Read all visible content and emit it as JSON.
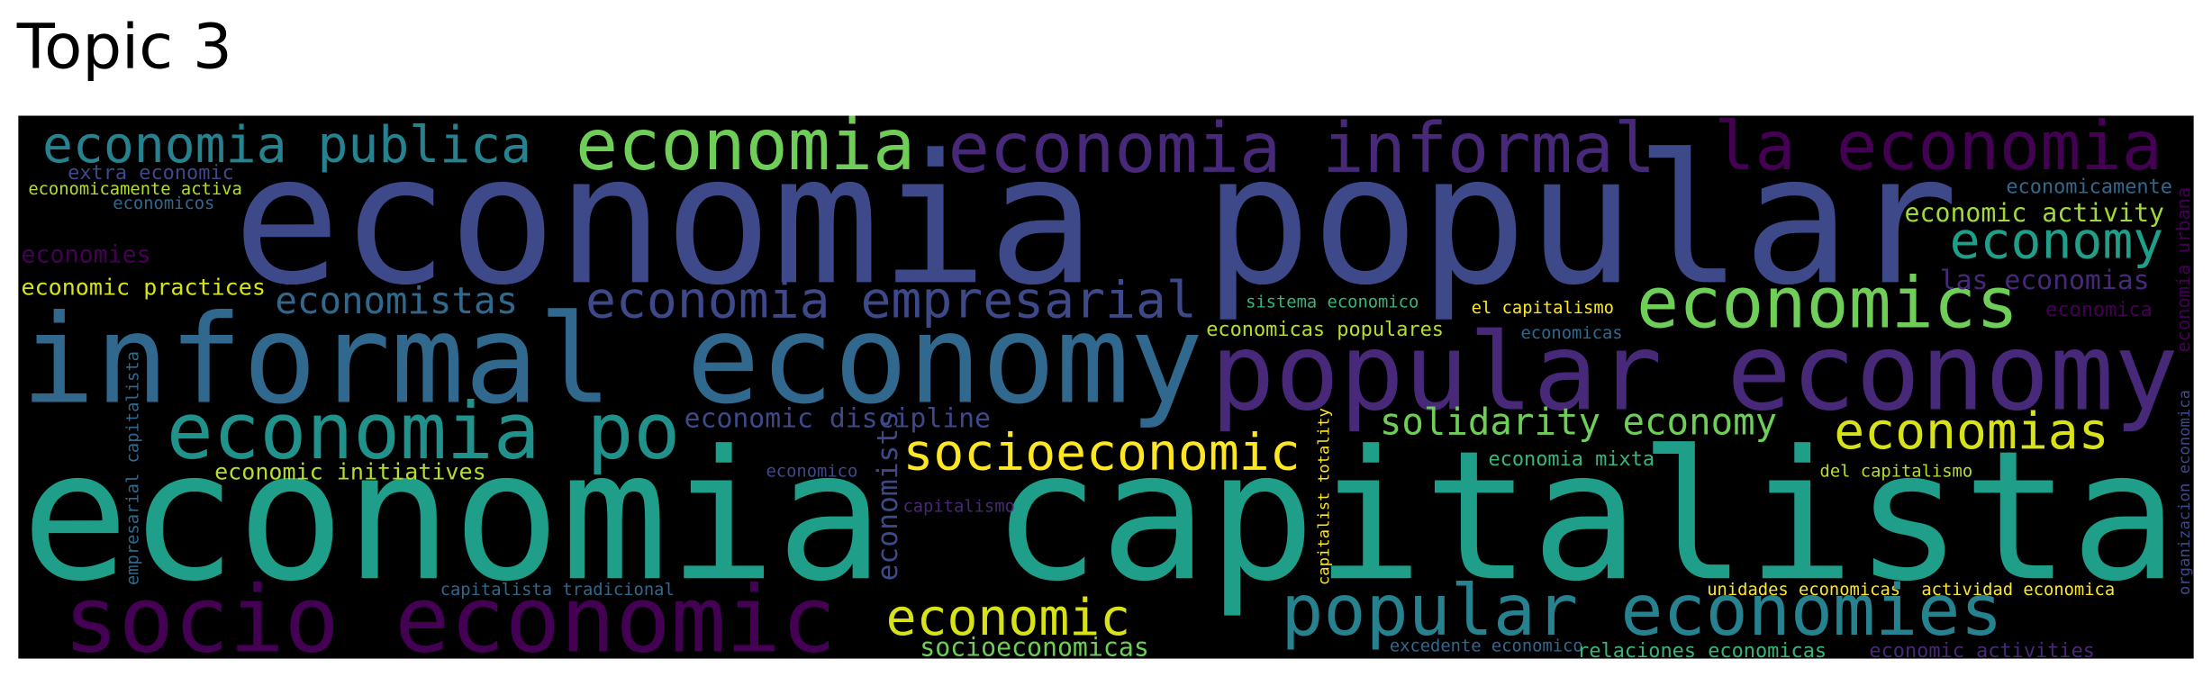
{
  "title": "Topic 3",
  "words": [
    {
      "text": "economia popular",
      "color": "#3e4989"
    },
    {
      "text": "informal economy",
      "color": "#31688e"
    },
    {
      "text": "economia capitalista",
      "color": "#1f9e89"
    },
    {
      "text": "popular economy",
      "color": "#482878"
    },
    {
      "text": "socio economic",
      "color": "#440154"
    },
    {
      "text": "economia po",
      "color": "#21918c"
    },
    {
      "text": "economia publica",
      "color": "#26828e"
    },
    {
      "text": "economia",
      "color": "#6ece58"
    },
    {
      "text": "economia informal",
      "color": "#482878"
    },
    {
      "text": "la economia",
      "color": "#440154"
    },
    {
      "text": "economia empresarial",
      "color": "#3e4989"
    },
    {
      "text": "economistas",
      "color": "#31688e"
    },
    {
      "text": "economics",
      "color": "#6ece58"
    },
    {
      "text": "economy",
      "color": "#1f9e89"
    },
    {
      "text": "economic activity",
      "color": "#a0da39"
    },
    {
      "text": "economicamente",
      "color": "#31688e"
    },
    {
      "text": "las economias",
      "color": "#482878"
    },
    {
      "text": "economica",
      "color": "#440154"
    },
    {
      "text": "economia urbana",
      "color": "#440154"
    },
    {
      "text": "extra economic",
      "color": "#3e4989"
    },
    {
      "text": "economicamente activa",
      "color": "#b5de2b"
    },
    {
      "text": "economicos",
      "color": "#31688e"
    },
    {
      "text": "economies",
      "color": "#440154"
    },
    {
      "text": "economic practices",
      "color": "#d8e219"
    },
    {
      "text": "sistema economico",
      "color": "#35b779"
    },
    {
      "text": "el capitalismo",
      "color": "#fde725"
    },
    {
      "text": "economicas populares",
      "color": "#b5de2b"
    },
    {
      "text": "economicas",
      "color": "#31688e"
    },
    {
      "text": "economic discipline",
      "color": "#3e4989"
    },
    {
      "text": "solidarity economy",
      "color": "#6ece58"
    },
    {
      "text": "economias",
      "color": "#d8e219"
    },
    {
      "text": "socioeconomic",
      "color": "#fde725"
    },
    {
      "text": "economic initiatives",
      "color": "#b5de2b"
    },
    {
      "text": "economico",
      "color": "#3e4989"
    },
    {
      "text": "economists",
      "color": "#3e4989"
    },
    {
      "text": "capitalismo",
      "color": "#482878"
    },
    {
      "text": "empresarial capitalista",
      "color": "#31688e"
    },
    {
      "text": "capitalist totality",
      "color": "#fde725"
    },
    {
      "text": "economia mixta",
      "color": "#35b779"
    },
    {
      "text": "del capitalismo",
      "color": "#b5de2b"
    },
    {
      "text": "organizacion economica",
      "color": "#3e4989"
    },
    {
      "text": "capitalista tradicional",
      "color": "#31688e"
    },
    {
      "text": "unidades economicas",
      "color": "#fde725"
    },
    {
      "text": "actividad economica",
      "color": "#fde725"
    },
    {
      "text": "economic",
      "color": "#d8e219"
    },
    {
      "text": "popular economies",
      "color": "#26828e"
    },
    {
      "text": "socioeconomicas",
      "color": "#6ece58"
    },
    {
      "text": "excedente economico",
      "color": "#31688e"
    },
    {
      "text": "relaciones economicas",
      "color": "#35b779"
    },
    {
      "text": "economic activities",
      "color": "#482878"
    }
  ]
}
